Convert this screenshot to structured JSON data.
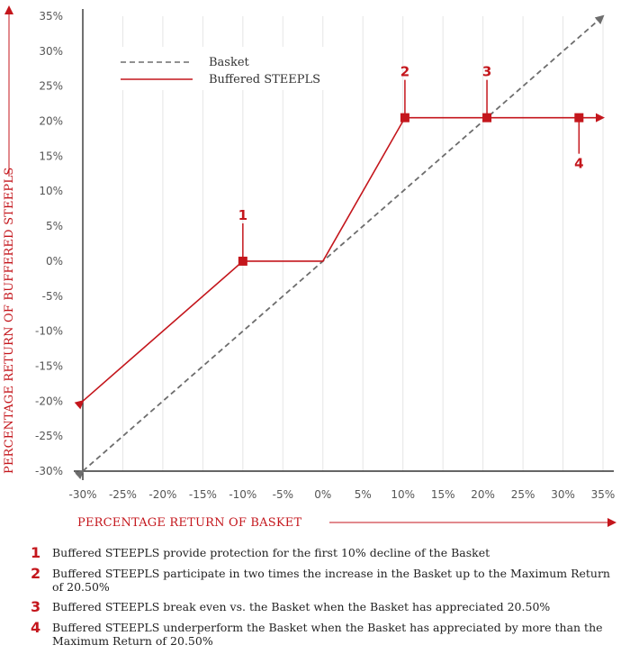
{
  "chart_data": {
    "type": "line",
    "xlabel": "PERCENTAGE RETURN OF BASKET",
    "ylabel": "PERCENTAGE RETURN OF BUFFERED STEEPLS",
    "xlim": [
      -30,
      35
    ],
    "ylim": [
      -30,
      35
    ],
    "x_ticks": [
      -30,
      -25,
      -20,
      -15,
      -10,
      -5,
      0,
      5,
      10,
      15,
      20,
      25,
      30,
      35
    ],
    "y_ticks": [
      -30,
      -25,
      -20,
      -15,
      -10,
      -5,
      0,
      5,
      10,
      15,
      20,
      25,
      30,
      35
    ],
    "x_tick_labels": [
      "-30%",
      "-25%",
      "-20%",
      "-15%",
      "-10%",
      "-5%",
      "0%",
      "5%",
      "10%",
      "15%",
      "20%",
      "25%",
      "30%",
      "35%"
    ],
    "y_tick_labels": [
      "-30%",
      "-25%",
      "-20%",
      "-15%",
      "-10%",
      "-5%",
      "0%",
      "5%",
      "10%",
      "15%",
      "20%",
      "25%",
      "30%",
      "35%"
    ],
    "legend_position": "top-left",
    "series": [
      {
        "name": "Basket",
        "style": "dashed",
        "color": "#6d6d6d",
        "x": [
          -30,
          35
        ],
        "y": [
          -30,
          35
        ]
      },
      {
        "name": "Buffered STEEPLS",
        "style": "solid",
        "color": "#c4161c",
        "x": [
          -30,
          -10,
          0,
          10.25,
          35
        ],
        "y": [
          -20,
          0,
          0,
          20.5,
          20.5
        ]
      }
    ],
    "markers": [
      {
        "label": "1",
        "x": -10,
        "y": 0,
        "label_side": "above"
      },
      {
        "label": "2",
        "x": 10.25,
        "y": 20.5,
        "label_side": "above"
      },
      {
        "label": "3",
        "x": 20.5,
        "y": 20.5,
        "label_side": "above"
      },
      {
        "label": "4",
        "x": 32,
        "y": 20.5,
        "label_side": "below"
      }
    ]
  },
  "notes": [
    {
      "num": "1",
      "text": "Buffered STEEPLS provide protection for the first 10% decline of the Basket"
    },
    {
      "num": "2",
      "text": "Buffered STEEPLS participate in two times the increase in the Basket up to the Maximum Return of 20.50%"
    },
    {
      "num": "3",
      "text": "Buffered STEEPLS break even vs. the Basket when the Basket has appreciated 20.50%"
    },
    {
      "num": "4",
      "text": "Buffered STEEPLS underperform the Basket when the Basket has appreciated by more than the Maximum Return of 20.50%"
    }
  ]
}
